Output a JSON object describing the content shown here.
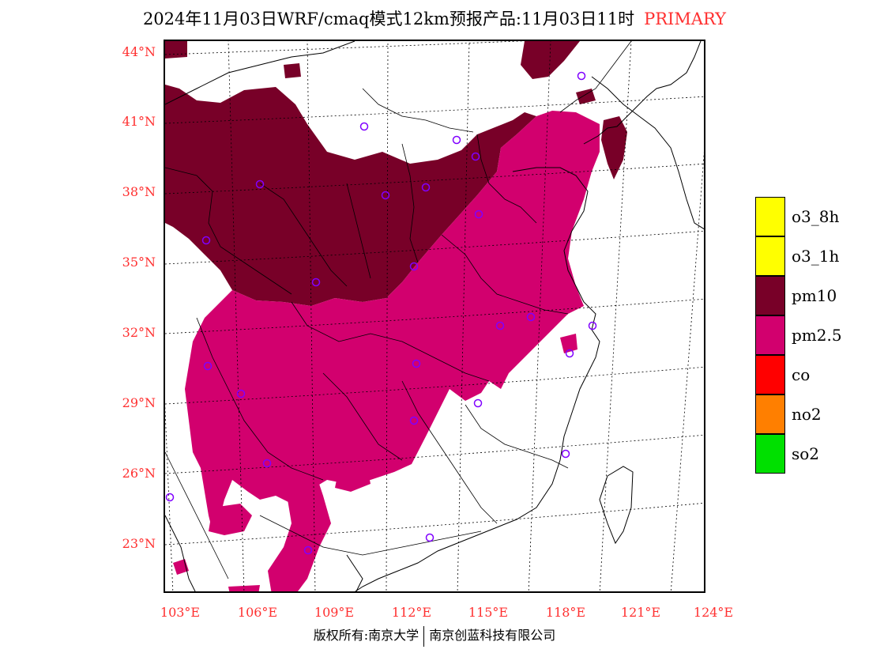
{
  "title": {
    "main": "2024年11月03日WRF/cmaq模式12km预报产品:11月03日11时",
    "tag": "PRIMARY"
  },
  "lat_labels": [
    "44°N",
    "41°N",
    "38°N",
    "35°N",
    "32°N",
    "29°N",
    "26°N",
    "23°N"
  ],
  "lon_labels": [
    "103°E",
    "106°E",
    "109°E",
    "112°E",
    "115°E",
    "118°E",
    "121°E",
    "124°E"
  ],
  "legend": [
    {
      "label": "o3_8h",
      "color": "#ffff00"
    },
    {
      "label": "o3_1h",
      "color": "#ffff00"
    },
    {
      "label": "pm10",
      "color": "#780028"
    },
    {
      "label": "pm2.5",
      "color": "#d2006e"
    },
    {
      "label": "co",
      "color": "#ff0000"
    },
    {
      "label": "no2",
      "color": "#ff7f00"
    },
    {
      "label": "so2",
      "color": "#00e000"
    }
  ],
  "footer": {
    "left": "版权所有:南京大学",
    "right": "南京创蓝科技有限公司"
  },
  "colors": {
    "pm10": "#780028",
    "pm25": "#d2006e",
    "label_red": "#ff3030",
    "station": "#8000ff"
  },
  "station_marker": "hollow-circle"
}
